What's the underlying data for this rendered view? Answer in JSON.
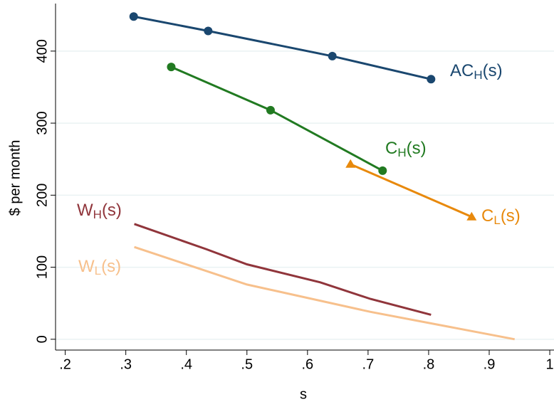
{
  "chart_data": {
    "type": "line",
    "x_label": "s",
    "y_label": "$ per month",
    "xlim": [
      0.184,
      1.007
    ],
    "ylim": [
      -15,
      466
    ],
    "xticks": [
      {
        "value": 0.2,
        "label": ".2"
      },
      {
        "value": 0.3,
        "label": ".3"
      },
      {
        "value": 0.4,
        "label": ".4"
      },
      {
        "value": 0.5,
        "label": ".5"
      },
      {
        "value": 0.6,
        "label": ".6"
      },
      {
        "value": 0.7,
        "label": ".7"
      },
      {
        "value": 0.8,
        "label": ".8"
      },
      {
        "value": 0.9,
        "label": ".9"
      },
      1
    ],
    "yticks": [
      0,
      100,
      200,
      300,
      400
    ],
    "grid": true,
    "series": [
      {
        "name": [
          "AC",
          "H",
          "(s)"
        ],
        "color": "#1a476f",
        "marker": "circle",
        "x": [
          0.313,
          0.436,
          0.641,
          0.804
        ],
        "values": [
          448,
          428,
          393,
          361
        ]
      },
      {
        "name": [
          "C",
          "H",
          "(s)"
        ],
        "color": "#217a21",
        "marker": "circle",
        "x": [
          0.375,
          0.539,
          0.724
        ],
        "values": [
          378,
          318,
          234
        ]
      },
      {
        "name": [
          "C",
          "L",
          "(s)"
        ],
        "color": "#e8890c",
        "marker": "triangle",
        "x": [
          0.671,
          0.871
        ],
        "values": [
          243,
          170
        ]
      },
      {
        "name": [
          "W",
          "H",
          "(s)"
        ],
        "color": "#90353b",
        "marker": null,
        "x": [
          0.314,
          0.433,
          0.5,
          0.621,
          0.704,
          0.804
        ],
        "values": [
          160,
          125,
          104,
          79,
          56,
          34
        ]
      },
      {
        "name": [
          "W",
          "L",
          "(s)"
        ],
        "color": "#f7c08c",
        "marker": null,
        "x": [
          0.314,
          0.5,
          0.704,
          0.942
        ],
        "values": [
          128,
          76,
          38,
          0
        ]
      }
    ]
  }
}
